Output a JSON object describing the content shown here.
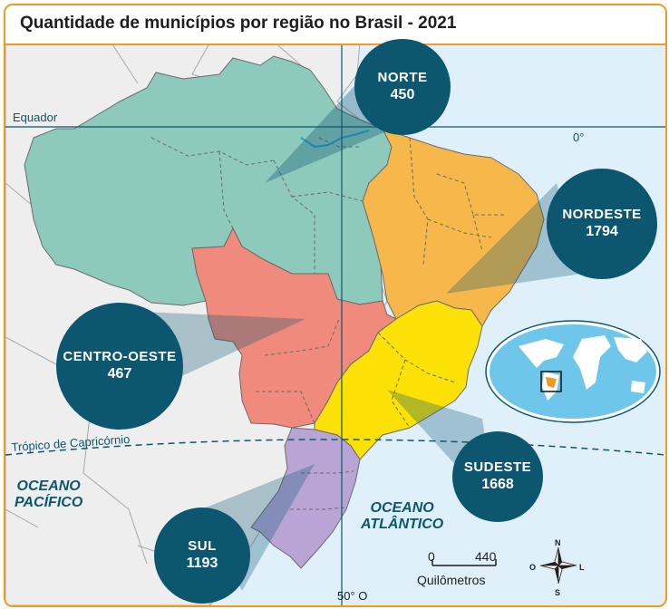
{
  "title": "Quantidade de municípios por região no Brasil - 2021",
  "regions": [
    {
      "key": "norte",
      "name": "NORTE",
      "value": "450",
      "color": "#8ecabc"
    },
    {
      "key": "nordeste",
      "name": "NORDESTE",
      "value": "1794",
      "color": "#f7b84b"
    },
    {
      "key": "centro_oeste",
      "name": "CENTRO-OESTE",
      "value": "467",
      "color": "#ef8a7c"
    },
    {
      "key": "sudeste",
      "name": "SUDESTE",
      "value": "1668",
      "color": "#fbe106"
    },
    {
      "key": "sul",
      "name": "SUL",
      "value": "1193",
      "color": "#b8a5d6"
    }
  ],
  "lines": {
    "equator": "Equador",
    "equator_degree": "0°",
    "tropic": "Trópico de Capricórnio",
    "meridian": "50° O"
  },
  "oceans": {
    "pacific": [
      "OCEANO",
      "PACÍFICO"
    ],
    "atlantic": [
      "OCEANO",
      "ATLÂNTICO"
    ]
  },
  "scale": {
    "start": "0",
    "end": "440",
    "unit": "Quilômetros"
  },
  "compass": {
    "n": "N",
    "s": "S",
    "e": "L",
    "w": "O"
  }
}
